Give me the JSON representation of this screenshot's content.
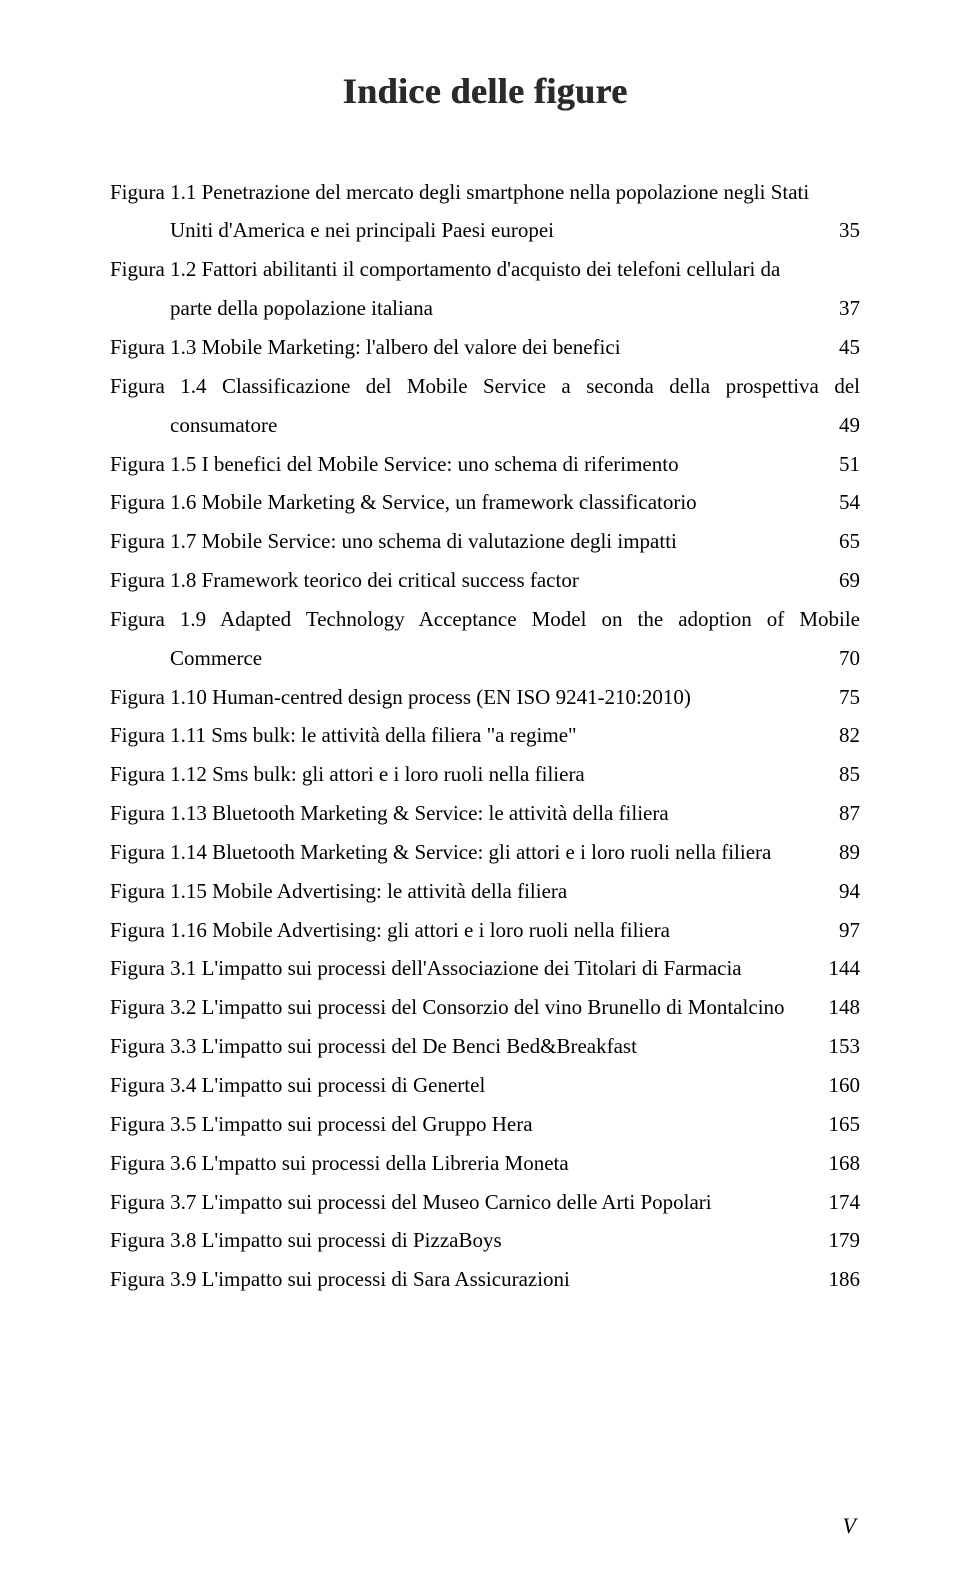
{
  "title": "Indice delle figure",
  "footer": "V",
  "entries": [
    {
      "lines": [
        "Figura 1.1 Penetrazione del mercato degli smartphone nella popolazione negli Stati",
        "Uniti d'America e nei principali Paesi europei"
      ],
      "page": "35",
      "continuation_indent": true
    },
    {
      "lines": [
        "Figura 1.2 Fattori abilitanti il comportamento d'acquisto dei telefoni cellulari da",
        "parte della popolazione italiana"
      ],
      "page": "37",
      "continuation_indent": true
    },
    {
      "lines": [
        "Figura 1.3 Mobile Marketing: l'albero del valore dei benefici"
      ],
      "page": "45"
    },
    {
      "lines": [
        "Figura 1.4 Classificazione del Mobile Service a seconda della prospettiva del",
        "consumatore"
      ],
      "page": "49",
      "continuation_indent": true,
      "justify_first": true
    },
    {
      "lines": [
        "Figura 1.5 I benefici del Mobile Service: uno schema di riferimento"
      ],
      "page": "51"
    },
    {
      "lines": [
        "Figura 1.6 Mobile Marketing & Service, un framework classificatorio"
      ],
      "page": "54"
    },
    {
      "lines": [
        "Figura 1.7 Mobile Service: uno schema di valutazione degli impatti"
      ],
      "page": "65"
    },
    {
      "lines": [
        "Figura 1.8 Framework teorico dei critical success factor"
      ],
      "page": "69"
    },
    {
      "lines": [
        "Figura 1.9 Adapted Technology Acceptance Model on the adoption of Mobile",
        "Commerce"
      ],
      "page": "70",
      "continuation_indent": true,
      "justify_first": true
    },
    {
      "lines": [
        "Figura 1.10 Human-centred design process (EN ISO 9241-210:2010)"
      ],
      "page": "75"
    },
    {
      "lines": [
        "Figura 1.11 Sms bulk: le attività della filiera \"a regime\""
      ],
      "page": "82"
    },
    {
      "lines": [
        "Figura 1.12 Sms bulk: gli attori e i loro ruoli nella filiera"
      ],
      "page": "85"
    },
    {
      "lines": [
        "Figura 1.13 Bluetooth Marketing & Service: le attività della filiera"
      ],
      "page": "87"
    },
    {
      "lines": [
        "Figura 1.14 Bluetooth Marketing & Service: gli attori e i loro ruoli nella filiera"
      ],
      "page": "89"
    },
    {
      "lines": [
        "Figura 1.15 Mobile Advertising: le attività della filiera"
      ],
      "page": "94"
    },
    {
      "lines": [
        "Figura 1.16 Mobile Advertising: gli attori e i loro ruoli nella filiera"
      ],
      "page": "97"
    },
    {
      "lines": [
        "Figura 3.1 L'impatto sui processi dell'Associazione dei Titolari di Farmacia"
      ],
      "page": "144"
    },
    {
      "lines": [
        "Figura 3.2 L'impatto sui processi del Consorzio del vino Brunello di Montalcino"
      ],
      "page": "148"
    },
    {
      "lines": [
        "Figura 3.3 L'impatto sui processi del De Benci Bed&Breakfast"
      ],
      "page": "153"
    },
    {
      "lines": [
        "Figura 3.4 L'impatto sui processi di Genertel"
      ],
      "page": "160"
    },
    {
      "lines": [
        "Figura 3.5 L'impatto sui processi del Gruppo Hera"
      ],
      "page": "165"
    },
    {
      "lines": [
        "Figura 3.6 L'mpatto sui processi della Libreria Moneta"
      ],
      "page": "168"
    },
    {
      "lines": [
        "Figura 3.7 L'impatto sui processi del Museo Carnico delle Arti Popolari"
      ],
      "page": "174"
    },
    {
      "lines": [
        "Figura 3.8 L'impatto sui processi di PizzaBoys"
      ],
      "page": "179"
    },
    {
      "lines": [
        "Figura 3.9 L'impatto sui processi di Sara Assicurazioni"
      ],
      "page": "186"
    }
  ]
}
